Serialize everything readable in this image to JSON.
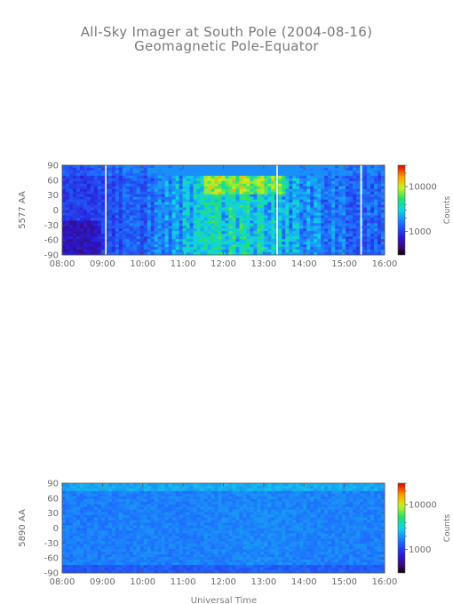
{
  "title": "All-Sky Imager at South Pole (2004-08-16)",
  "subtitle": "Geomagnetic Pole-Equator",
  "xlabel": "Universal Time",
  "chart_data": [
    {
      "type": "heatmap",
      "ylabel": "5577 AA",
      "colorbar_label": "Counts",
      "colorbar_ticks": [
        "10000",
        "1000"
      ],
      "x_ticks": [
        "08:00",
        "09:00",
        "10:00",
        "11:00",
        "12:00",
        "13:00",
        "14:00",
        "15:00",
        "16:00"
      ],
      "y_ticks": [
        "90",
        "60",
        "30",
        "0",
        "-30",
        "-60",
        "-90"
      ],
      "xlim": [
        "08:00",
        "16:00"
      ],
      "ylim": [
        -90,
        90
      ],
      "data_gaps_ut": [
        "09:05",
        "13:20",
        "15:25"
      ],
      "intensity_by_hour": {
        "08": 0.12,
        "09": 0.2,
        "10": 0.3,
        "11": 0.55,
        "12": 0.75,
        "13": 0.7,
        "14": 0.5,
        "15": 0.35,
        "16": 0.3
      },
      "peak_region": {
        "ut": [
          "11:30",
          "13:30"
        ],
        "lat": [
          30,
          70
        ]
      }
    },
    {
      "type": "heatmap",
      "ylabel": "5890 AA",
      "colorbar_label": "Counts",
      "colorbar_ticks": [
        "10000",
        "1000"
      ],
      "x_ticks": [
        "08:00",
        "09:00",
        "10:00",
        "11:00",
        "12:00",
        "13:00",
        "14:00",
        "15:00",
        "16:00"
      ],
      "y_ticks": [
        "90",
        "60",
        "30",
        "0",
        "-30",
        "-60",
        "-90"
      ],
      "xlim": [
        "08:00",
        "16:00"
      ],
      "ylim": [
        -90,
        90
      ],
      "intensity_by_hour": {
        "08": 0.36,
        "09": 0.38,
        "10": 0.4,
        "11": 0.38,
        "12": 0.42,
        "13": 0.45,
        "14": 0.42,
        "15": 0.4,
        "16": 0.38
      }
    }
  ]
}
